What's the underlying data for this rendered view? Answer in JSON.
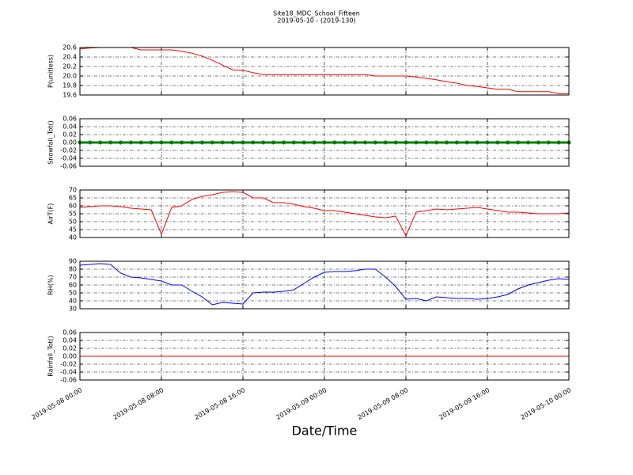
{
  "title": "Site18_MDC_School_Fifteen",
  "subtitle": "2019-05-10 - (2019-130)",
  "xlabel": "Date/Time",
  "xlim": [
    "2019-05-08 00:00",
    "2019-05-10 00:00"
  ],
  "xticks": [
    "2019-05-08 00:00",
    "2019-05-08 08:00",
    "2019-05-08 16:00",
    "2019-05-09 00:00",
    "2019-05-09 08:00",
    "2019-05-09 16:00",
    "2019-05-10 00:00"
  ],
  "x": [
    "2019-05-08 00:00",
    "2019-05-08 01:00",
    "2019-05-08 02:00",
    "2019-05-08 03:00",
    "2019-05-08 04:00",
    "2019-05-08 05:00",
    "2019-05-08 06:00",
    "2019-05-08 07:00",
    "2019-05-08 08:00",
    "2019-05-08 09:00",
    "2019-05-08 10:00",
    "2019-05-08 11:00",
    "2019-05-08 12:00",
    "2019-05-08 13:00",
    "2019-05-08 14:00",
    "2019-05-08 15:00",
    "2019-05-08 16:00",
    "2019-05-08 17:00",
    "2019-05-08 18:00",
    "2019-05-08 19:00",
    "2019-05-08 20:00",
    "2019-05-08 21:00",
    "2019-05-08 22:00",
    "2019-05-08 23:00",
    "2019-05-09 00:00",
    "2019-05-09 01:00",
    "2019-05-09 02:00",
    "2019-05-09 03:00",
    "2019-05-09 04:00",
    "2019-05-09 05:00",
    "2019-05-09 06:00",
    "2019-05-09 07:00",
    "2019-05-09 08:00",
    "2019-05-09 09:00",
    "2019-05-09 10:00",
    "2019-05-09 11:00",
    "2019-05-09 12:00",
    "2019-05-09 13:00",
    "2019-05-09 14:00",
    "2019-05-09 15:00",
    "2019-05-09 16:00",
    "2019-05-09 17:00",
    "2019-05-09 18:00",
    "2019-05-09 19:00",
    "2019-05-09 20:00",
    "2019-05-09 21:00",
    "2019-05-09 22:00",
    "2019-05-09 23:00",
    "2019-05-10 00:00"
  ],
  "chart_data": [
    {
      "type": "line",
      "ylabel": "P(unitless)",
      "ylim": [
        19.6,
        20.6
      ],
      "grid": true,
      "yticks": [
        19.6,
        19.8,
        {
          "value": 20,
          "label": "20.0"
        },
        20.2,
        20.4,
        20.6
      ],
      "series": [
        {
          "color": "#ff0000",
          "values": [
            20.57,
            20.59,
            20.6,
            20.6,
            20.6,
            20.6,
            20.55,
            20.55,
            20.55,
            20.55,
            20.52,
            20.48,
            20.42,
            20.33,
            20.23,
            20.13,
            20.12,
            20.07,
            20.03,
            20.03,
            20.03,
            20.03,
            20.03,
            20.03,
            20.03,
            20.03,
            20.03,
            20.03,
            20.03,
            20.0,
            20.0,
            20.0,
            20.0,
            19.98,
            19.95,
            19.92,
            19.88,
            19.85,
            19.8,
            19.78,
            19.75,
            19.72,
            19.72,
            19.67,
            19.67,
            19.67,
            19.67,
            19.63,
            19.63
          ]
        }
      ]
    },
    {
      "type": "line",
      "ylabel": "Snowfall_Tot()",
      "ylim": [
        -0.06,
        0.06
      ],
      "grid": true,
      "markers": true,
      "yticks": [
        -0.06,
        -0.04,
        -0.02,
        {
          "value": 0,
          "label": "0.00"
        },
        0.02,
        0.04,
        0.06
      ],
      "series": [
        {
          "color": "#008000",
          "values": [
            0,
            0,
            0,
            0,
            0,
            0,
            0,
            0,
            0,
            0,
            0,
            0,
            0,
            0,
            0,
            0,
            0,
            0,
            0,
            0,
            0,
            0,
            0,
            0,
            0,
            0,
            0,
            0,
            0,
            0,
            0,
            0,
            0,
            0,
            0,
            0,
            0,
            0,
            0,
            0,
            0,
            0,
            0,
            0,
            0,
            0,
            0,
            0,
            0
          ]
        }
      ]
    },
    {
      "type": "line",
      "ylabel": "AirT(F)",
      "ylim": [
        40,
        70
      ],
      "grid": true,
      "yticks": [
        40,
        45,
        50,
        55,
        60,
        65,
        70
      ],
      "series": [
        {
          "color": "#ff0000",
          "values": [
            59,
            59.5,
            60,
            60,
            59.5,
            58.5,
            58,
            57.5,
            42,
            59,
            60,
            64,
            66,
            67,
            68.5,
            69,
            68.5,
            65,
            65,
            62,
            62,
            61,
            59.5,
            58.5,
            57,
            57,
            56,
            55,
            54,
            53,
            52.5,
            53.5,
            41,
            56,
            57,
            58,
            57.5,
            58,
            58.5,
            59,
            58,
            57,
            56,
            56,
            55.5,
            55,
            55,
            55,
            55.5
          ]
        }
      ]
    },
    {
      "type": "line",
      "ylabel": "RH(%)",
      "ylim": [
        30,
        90
      ],
      "grid": true,
      "yticks": [
        30,
        40,
        50,
        60,
        70,
        80,
        90
      ],
      "series": [
        {
          "color": "#0000ff",
          "values": [
            85,
            86,
            87,
            86,
            75,
            70,
            69,
            67,
            65,
            60,
            60,
            52,
            45,
            35,
            38,
            37,
            36,
            50,
            51,
            51,
            52,
            54,
            62,
            70,
            76,
            77,
            77,
            78,
            80,
            80,
            70,
            58,
            42,
            43,
            40,
            45,
            44,
            43,
            43,
            42,
            43,
            45,
            48,
            55,
            60,
            63,
            66,
            68,
            67
          ]
        }
      ]
    },
    {
      "type": "line",
      "ylabel": "Rainfall_Tot()",
      "ylim": [
        -0.06,
        0.06
      ],
      "grid": true,
      "yticks": [
        -0.06,
        -0.04,
        -0.02,
        {
          "value": 0,
          "label": "0.00"
        },
        0.02,
        0.04,
        0.06
      ],
      "series": [
        {
          "color": "#ff0000",
          "values": [
            0,
            0,
            0,
            0,
            0,
            0,
            0,
            0,
            0,
            0,
            0,
            0,
            0,
            0,
            0,
            0,
            0,
            0,
            0,
            0,
            0,
            0,
            0,
            0,
            0,
            0,
            0,
            0,
            0,
            0,
            0,
            0,
            0,
            0,
            0,
            0,
            0,
            0,
            0,
            0,
            0,
            0,
            0,
            0,
            0,
            0,
            0,
            0,
            0
          ]
        }
      ]
    }
  ]
}
